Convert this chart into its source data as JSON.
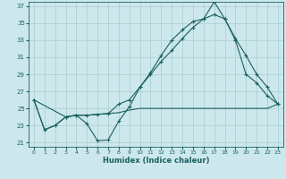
{
  "xlabel": "Humidex (Indice chaleur)",
  "ylabel": "",
  "bg_color": "#cce8ec",
  "grid_color": "#aacccc",
  "line_color": "#1a6060",
  "xlim": [
    -0.5,
    23.5
  ],
  "ylim": [
    20.5,
    37.5
  ],
  "xticks": [
    0,
    1,
    2,
    3,
    4,
    5,
    6,
    7,
    8,
    9,
    10,
    11,
    12,
    13,
    14,
    15,
    16,
    17,
    18,
    19,
    20,
    21,
    22,
    23
  ],
  "yticks": [
    21,
    23,
    25,
    27,
    29,
    31,
    33,
    35,
    37
  ],
  "line1_x": [
    0,
    1,
    2,
    3,
    4,
    5,
    6,
    7,
    8,
    9,
    10,
    11,
    12,
    13,
    14,
    15,
    16,
    17,
    18,
    19,
    20,
    21,
    22,
    23
  ],
  "line1_y": [
    26.0,
    22.5,
    23.0,
    24.0,
    24.2,
    24.2,
    24.3,
    24.4,
    24.5,
    24.8,
    25.0,
    25.0,
    25.0,
    25.0,
    25.0,
    25.0,
    25.0,
    25.0,
    25.0,
    25.0,
    25.0,
    25.0,
    25.0,
    25.5
  ],
  "line2_x": [
    0,
    1,
    2,
    3,
    4,
    5,
    6,
    7,
    8,
    9,
    10,
    11,
    12,
    13,
    14,
    15,
    16,
    17,
    18,
    19,
    20,
    21,
    22,
    23
  ],
  "line2_y": [
    26.0,
    22.5,
    23.0,
    24.0,
    24.2,
    23.2,
    21.2,
    21.3,
    23.5,
    25.2,
    27.5,
    29.2,
    31.2,
    33.0,
    34.2,
    35.2,
    35.5,
    37.5,
    35.5,
    33.0,
    29.0,
    28.0,
    26.5,
    25.5
  ],
  "line3_x": [
    0,
    3,
    4,
    5,
    6,
    7,
    8,
    9,
    10,
    11,
    12,
    13,
    14,
    15,
    16,
    17,
    18,
    19,
    20,
    21,
    22,
    23
  ],
  "line3_y": [
    26.0,
    24.0,
    24.2,
    24.2,
    24.3,
    24.4,
    25.5,
    26.0,
    27.5,
    29.0,
    30.5,
    31.8,
    33.2,
    34.5,
    35.5,
    36.0,
    35.5,
    33.2,
    31.2,
    29.0,
    27.5,
    25.5
  ]
}
